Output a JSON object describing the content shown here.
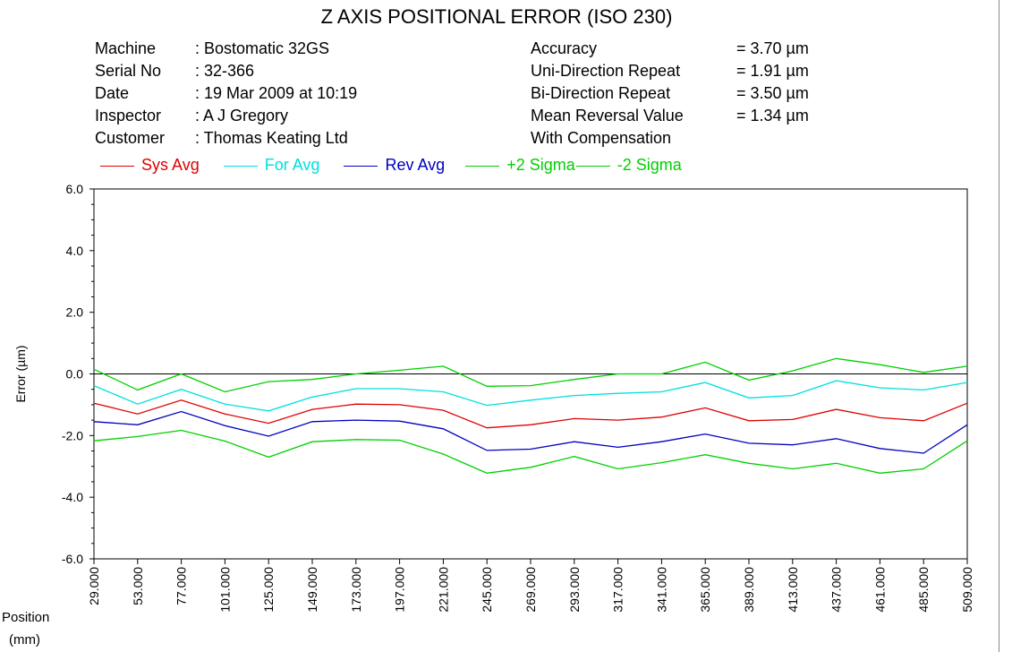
{
  "title": "Z AXIS POSITIONAL ERROR (ISO 230)",
  "info_left": [
    {
      "label": "Machine",
      "value": ": Bostomatic 32GS"
    },
    {
      "label": "Serial No",
      "value": ": 32-366"
    },
    {
      "label": "Date",
      "value": ": 19 Mar 2009 at 10:19"
    },
    {
      "label": "Inspector",
      "value": ": A J Gregory"
    },
    {
      "label": "Customer",
      "value": ": Thomas Keating Ltd"
    }
  ],
  "info_right": [
    {
      "label": "Accuracy",
      "value": "= 3.70 µm"
    },
    {
      "label": "Uni-Direction Repeat",
      "value": "= 1.91 µm"
    },
    {
      "label": "Bi-Direction Repeat",
      "value": "= 3.50 µm"
    },
    {
      "label": "Mean Reversal Value",
      "value": "= 1.34 µm"
    },
    {
      "label": "With Compensation",
      "value": ""
    }
  ],
  "x_unit_line1": "Position",
  "x_unit_line2": "(mm)",
  "chart_data": {
    "type": "line",
    "ylabel": "Error (µm)",
    "ylim": [
      -6.0,
      6.0
    ],
    "yticks": [
      "6.0",
      "4.0",
      "2.0",
      "0.0",
      "-2.0",
      "-4.0",
      "-6.0"
    ],
    "x_labels": [
      "29.000",
      "53.000",
      "77.000",
      "101.000",
      "125.000",
      "149.000",
      "173.000",
      "197.000",
      "221.000",
      "245.000",
      "269.000",
      "293.000",
      "317.000",
      "341.000",
      "365.000",
      "389.000",
      "413.000",
      "437.000",
      "461.000",
      "485.000",
      "509.000"
    ],
    "x": [
      29,
      53,
      77,
      101,
      125,
      149,
      173,
      197,
      221,
      245,
      269,
      293,
      317,
      341,
      365,
      389,
      413,
      437,
      461,
      485,
      509
    ],
    "legend_position": "top",
    "series": [
      {
        "name": "Sys Avg",
        "color": "#e00000",
        "values": [
          -0.95,
          -1.3,
          -0.85,
          -1.3,
          -1.6,
          -1.15,
          -0.98,
          -1.0,
          -1.18,
          -1.75,
          -1.65,
          -1.45,
          -1.5,
          -1.4,
          -1.1,
          -1.52,
          -1.48,
          -1.15,
          -1.42,
          -1.52,
          -0.95
        ]
      },
      {
        "name": "For Avg",
        "color": "#00e0e0",
        "values": [
          -0.38,
          -0.98,
          -0.5,
          -0.98,
          -1.2,
          -0.75,
          -0.48,
          -0.48,
          -0.58,
          -1.02,
          -0.85,
          -0.7,
          -0.63,
          -0.58,
          -0.28,
          -0.78,
          -0.7,
          -0.22,
          -0.45,
          -0.52,
          -0.28
        ]
      },
      {
        "name": "Rev Avg",
        "color": "#0000c0",
        "values": [
          -1.55,
          -1.65,
          -1.22,
          -1.68,
          -2.02,
          -1.55,
          -1.5,
          -1.53,
          -1.78,
          -2.48,
          -2.44,
          -2.2,
          -2.38,
          -2.2,
          -1.95,
          -2.25,
          -2.3,
          -2.1,
          -2.42,
          -2.57,
          -1.65
        ]
      },
      {
        "name": "+2 Sigma",
        "color": "#00d000",
        "values": [
          0.15,
          -0.52,
          0.0,
          -0.58,
          -0.25,
          -0.18,
          0.0,
          0.12,
          0.25,
          -0.4,
          -0.38,
          -0.18,
          0.0,
          0.0,
          0.38,
          -0.2,
          0.1,
          0.5,
          0.3,
          0.05,
          0.25
        ]
      },
      {
        "name": "-2 Sigma",
        "color": "#00d000",
        "values": [
          -2.17,
          -2.03,
          -1.83,
          -2.18,
          -2.7,
          -2.2,
          -2.13,
          -2.15,
          -2.6,
          -3.22,
          -3.03,
          -2.68,
          -3.08,
          -2.88,
          -2.62,
          -2.9,
          -3.08,
          -2.9,
          -3.22,
          -3.08,
          -2.17
        ]
      }
    ]
  },
  "colors": {
    "axis": "#000000",
    "background": "#ffffff",
    "zero_line": "#000000"
  }
}
